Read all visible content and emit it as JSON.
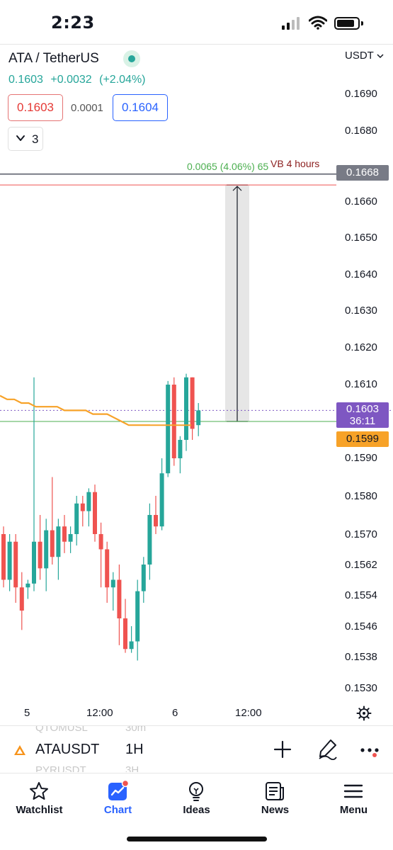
{
  "status_bar": {
    "time": "2:23"
  },
  "header": {
    "symbol_title": "ATA / TetherUS",
    "last_price": "0.1603",
    "change": "+0.0032",
    "change_pct": "(+2.04%)",
    "bid": "0.1603",
    "spread": "0.0001",
    "ask": "0.1604",
    "indicators_count": "3",
    "currency": "USDT"
  },
  "price_axis": {
    "labels": [
      "0.1690",
      "0.1680",
      "0.1660",
      "0.1650",
      "0.1640",
      "0.1630",
      "0.1620",
      "0.1610",
      "0.1590",
      "0.1580",
      "0.1570",
      "0.1562",
      "0.1554",
      "0.1546",
      "0.1538",
      "0.1530"
    ],
    "tag_line": "0.1668",
    "tag_current": "0.1603",
    "tag_countdown": "36:11",
    "tag_ma": "0.1599"
  },
  "annotations": {
    "ruler_text": "0.0065 (4.06%) 65",
    "vb_text": "VB 4 hours"
  },
  "time_axis": {
    "labels": [
      "5",
      "12:00",
      "6",
      "12:00"
    ]
  },
  "symbol_toolbar": {
    "ghost_top_symbol": "QTOMUSL",
    "ghost_top_interval": "30m",
    "ghost_bottom_symbol": "PYRUSDT",
    "ghost_bottom_interval": "3H",
    "symbol": "ATAUSDT",
    "interval": "1H"
  },
  "nav": {
    "tabs": [
      {
        "label": "Watchlist",
        "icon": "star-icon"
      },
      {
        "label": "Chart",
        "icon": "chart-icon"
      },
      {
        "label": "Ideas",
        "icon": "lightbulb-icon"
      },
      {
        "label": "News",
        "icon": "news-icon"
      },
      {
        "label": "Menu",
        "icon": "menu-icon"
      }
    ],
    "active": "Chart"
  },
  "colors": {
    "up": "#26a69a",
    "down": "#ef5350",
    "accent": "#2962ff",
    "ma_line": "#f7a228",
    "current_tag": "#7e57c2"
  },
  "chart_data": {
    "type": "candlestick",
    "symbol": "ATAUSDT",
    "interval": "1H",
    "candles": [
      {
        "o": 0.157,
        "h": 0.1572,
        "l": 0.1556,
        "c": 0.1558
      },
      {
        "o": 0.1558,
        "h": 0.157,
        "l": 0.1555,
        "c": 0.1568
      },
      {
        "o": 0.1568,
        "h": 0.157,
        "l": 0.1552,
        "c": 0.1556
      },
      {
        "o": 0.1556,
        "h": 0.156,
        "l": 0.1545,
        "c": 0.155
      },
      {
        "o": 0.1556,
        "h": 0.1558,
        "l": 0.1553,
        "c": 0.1557
      },
      {
        "o": 0.1557,
        "h": 0.1612,
        "l": 0.1555,
        "c": 0.1568
      },
      {
        "o": 0.1568,
        "h": 0.1575,
        "l": 0.1558,
        "c": 0.1561
      },
      {
        "o": 0.1561,
        "h": 0.1574,
        "l": 0.1555,
        "c": 0.1571
      },
      {
        "o": 0.1571,
        "h": 0.1585,
        "l": 0.1562,
        "c": 0.1564
      },
      {
        "o": 0.1564,
        "h": 0.1574,
        "l": 0.1558,
        "c": 0.1572
      },
      {
        "o": 0.1572,
        "h": 0.1575,
        "l": 0.1565,
        "c": 0.1568
      },
      {
        "o": 0.1568,
        "h": 0.1572,
        "l": 0.1565,
        "c": 0.157
      },
      {
        "o": 0.157,
        "h": 0.158,
        "l": 0.1567,
        "c": 0.1578
      },
      {
        "o": 0.1578,
        "h": 0.158,
        "l": 0.1572,
        "c": 0.1576
      },
      {
        "o": 0.1576,
        "h": 0.1582,
        "l": 0.1572,
        "c": 0.1581
      },
      {
        "o": 0.1581,
        "h": 0.1583,
        "l": 0.1568,
        "c": 0.157
      },
      {
        "o": 0.157,
        "h": 0.1573,
        "l": 0.1556,
        "c": 0.1566
      },
      {
        "o": 0.1566,
        "h": 0.1568,
        "l": 0.1552,
        "c": 0.1556
      },
      {
        "o": 0.1556,
        "h": 0.156,
        "l": 0.155,
        "c": 0.1558
      },
      {
        "o": 0.1558,
        "h": 0.1562,
        "l": 0.1541,
        "c": 0.1548
      },
      {
        "o": 0.1548,
        "h": 0.1553,
        "l": 0.1539,
        "c": 0.154
      },
      {
        "o": 0.154,
        "h": 0.1546,
        "l": 0.1539,
        "c": 0.1542
      },
      {
        "o": 0.1542,
        "h": 0.1558,
        "l": 0.1537,
        "c": 0.1555
      },
      {
        "o": 0.1555,
        "h": 0.1564,
        "l": 0.1552,
        "c": 0.1562
      },
      {
        "o": 0.1562,
        "h": 0.1578,
        "l": 0.1558,
        "c": 0.1575
      },
      {
        "o": 0.1575,
        "h": 0.158,
        "l": 0.157,
        "c": 0.1572
      },
      {
        "o": 0.1572,
        "h": 0.159,
        "l": 0.1571,
        "c": 0.1586
      },
      {
        "o": 0.1586,
        "h": 0.1611,
        "l": 0.1585,
        "c": 0.161
      },
      {
        "o": 0.161,
        "h": 0.1612,
        "l": 0.1588,
        "c": 0.159
      },
      {
        "o": 0.159,
        "h": 0.1596,
        "l": 0.1586,
        "c": 0.1595
      },
      {
        "o": 0.1595,
        "h": 0.1613,
        "l": 0.1592,
        "c": 0.1612
      },
      {
        "o": 0.1612,
        "h": 0.1612,
        "l": 0.1595,
        "c": 0.1598
      },
      {
        "o": 0.1599,
        "h": 0.1605,
        "l": 0.1596,
        "c": 0.1603
      }
    ],
    "moving_average": {
      "start": 0.1607,
      "points": [
        0.1607,
        0.1606,
        0.1606,
        0.1605,
        0.1605,
        0.1604,
        0.1604,
        0.1604,
        0.1604,
        0.1603,
        0.1603,
        0.1603,
        0.1603,
        0.1602,
        0.1602,
        0.1602,
        0.1601,
        0.16,
        0.1599,
        0.1599,
        0.1599,
        0.1599
      ]
    },
    "horizontal_lines": [
      {
        "price": 0.1668,
        "color": "#787b86"
      },
      {
        "price": 0.1665,
        "color": "#ef5350"
      },
      {
        "price": 0.16,
        "color": "#4caf50"
      },
      {
        "price": 0.1603,
        "color": "#7e57c2",
        "style": "dotted"
      }
    ],
    "price_range_measure": {
      "from": 0.16,
      "to": 0.1665,
      "change": "0.0065 (4.06%)"
    },
    "y_axis_scale": "non-uniform"
  }
}
